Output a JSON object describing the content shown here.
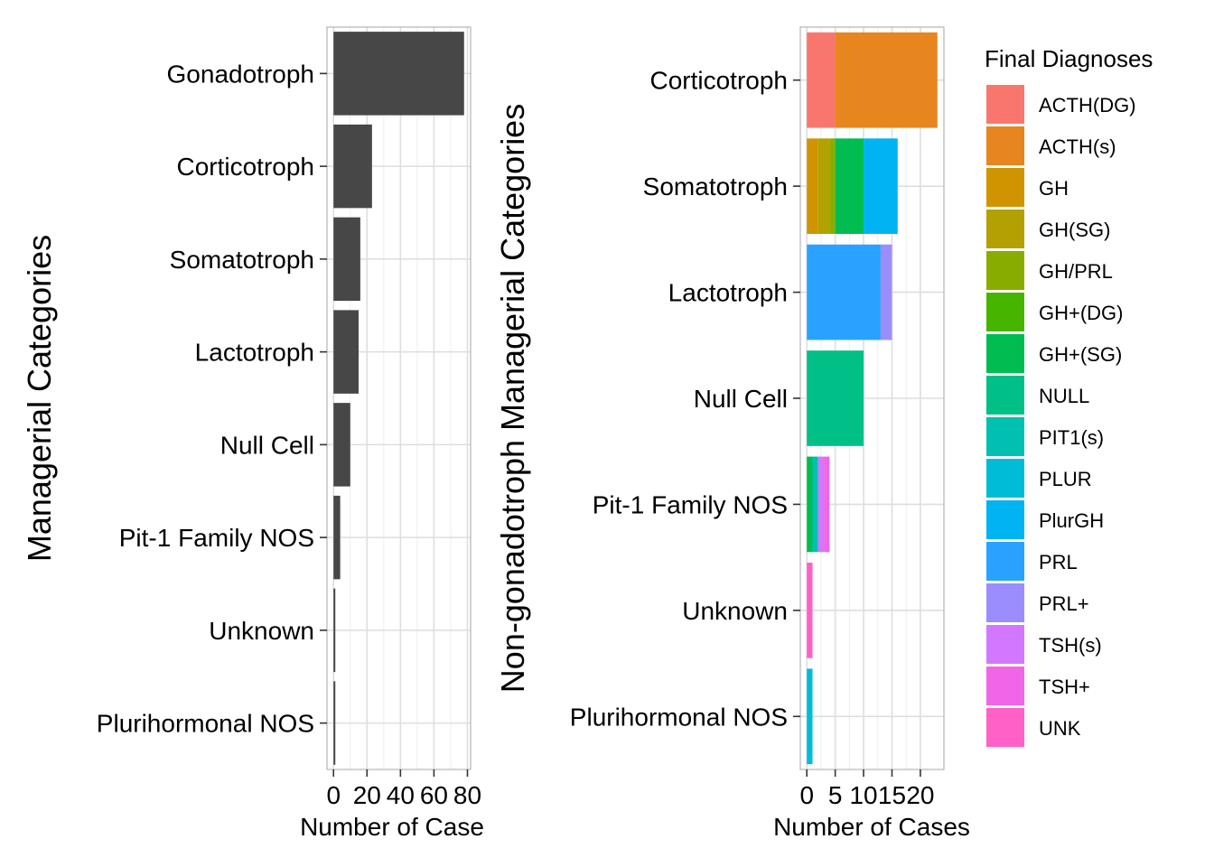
{
  "chart_data": [
    {
      "type": "bar",
      "orientation": "horizontal",
      "ylabel": "Managerial Categories",
      "xlabel": "Number of Cases",
      "categories": [
        "Gonadotroph",
        "Corticotroph",
        "Somatotroph",
        "Lactotroph",
        "Null Cell",
        "Pit-1 Family NOS",
        "Unknown",
        "Plurihormonal NOS"
      ],
      "values": [
        78,
        23,
        16,
        15,
        10,
        4,
        1,
        1
      ],
      "xlim": [
        0,
        80
      ],
      "xticks": [
        0,
        20,
        40,
        60,
        80
      ],
      "tick_labels": [
        "0",
        "20",
        "40",
        "60",
        "80"
      ],
      "bar_color": "#474747",
      "grid": true
    },
    {
      "type": "bar",
      "orientation": "horizontal",
      "stacked": true,
      "ylabel": "Non-gonadotroph Managerial Categories",
      "xlabel": "Number of Cases",
      "legend_title": "Final Diagnoses",
      "legend_position": "right",
      "categories": [
        "Corticotroph",
        "Somatotroph",
        "Lactotroph",
        "Null Cell",
        "Pit-1 Family NOS",
        "Unknown",
        "Plurihormonal NOS"
      ],
      "xlim": [
        0,
        23
      ],
      "xticks": [
        0,
        5,
        10,
        15,
        20
      ],
      "tick_labels": [
        "0",
        "5",
        "10",
        "15",
        "20"
      ],
      "grid": true,
      "series": [
        {
          "name": "ACTH(DG)",
          "color": "#F8766D",
          "values": [
            5,
            0,
            0,
            0,
            0,
            0,
            0
          ]
        },
        {
          "name": "ACTH(s)",
          "color": "#E7851E",
          "values": [
            18,
            0,
            0,
            0,
            0,
            0,
            0
          ]
        },
        {
          "name": "GH",
          "color": "#D09400",
          "values": [
            0,
            2,
            0,
            0,
            0,
            0,
            0
          ]
        },
        {
          "name": "GH(SG)",
          "color": "#B2A100",
          "values": [
            0,
            2,
            0,
            0,
            0,
            0,
            0
          ]
        },
        {
          "name": "GH/PRL",
          "color": "#89AC00",
          "values": [
            0,
            1,
            0,
            0,
            0,
            0,
            0
          ]
        },
        {
          "name": "GH+(DG)",
          "color": "#45B500",
          "values": [
            0,
            0,
            0,
            0,
            0,
            0,
            0
          ]
        },
        {
          "name": "GH+(SG)",
          "color": "#00BC51",
          "values": [
            0,
            5,
            0,
            0,
            1,
            0,
            0
          ]
        },
        {
          "name": "NULL",
          "color": "#00C087",
          "values": [
            0,
            0,
            0,
            10,
            0,
            0,
            0
          ]
        },
        {
          "name": "PIT1(s)",
          "color": "#00C0B2",
          "values": [
            0,
            0,
            0,
            0,
            1,
            0,
            0
          ]
        },
        {
          "name": "PLUR",
          "color": "#00BCD6",
          "values": [
            0,
            0,
            0,
            0,
            0,
            0,
            1
          ]
        },
        {
          "name": "PlurGH",
          "color": "#00B3F2",
          "values": [
            0,
            6,
            0,
            0,
            0,
            0,
            0
          ]
        },
        {
          "name": "PRL",
          "color": "#29A3FF",
          "values": [
            0,
            0,
            13,
            0,
            0,
            0,
            0
          ]
        },
        {
          "name": "PRL+",
          "color": "#9C8DFF",
          "values": [
            0,
            0,
            2,
            0,
            0,
            0,
            0
          ]
        },
        {
          "name": "TSH(s)",
          "color": "#D277FF",
          "values": [
            0,
            0,
            0,
            0,
            1,
            0,
            0
          ]
        },
        {
          "name": "TSH+",
          "color": "#F166E8",
          "values": [
            0,
            0,
            0,
            0,
            1,
            0,
            0
          ]
        },
        {
          "name": "UNK",
          "color": "#FF61C7",
          "values": [
            0,
            0,
            0,
            0,
            0,
            1,
            0
          ]
        }
      ]
    }
  ]
}
